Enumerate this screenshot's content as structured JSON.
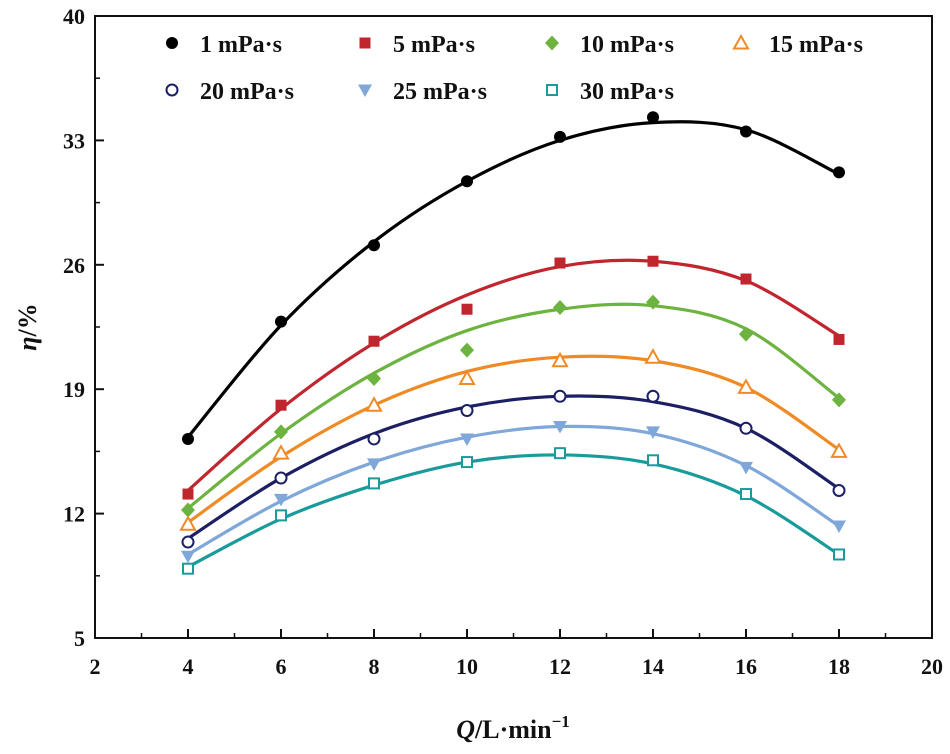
{
  "chart_data": {
    "type": "scatter",
    "title": "",
    "xlabel": {
      "var": "Q",
      "unit": "/L·min",
      "exp": "−1"
    },
    "ylabel": {
      "var": "η",
      "unit": "/%"
    },
    "xlim": [
      2,
      20
    ],
    "ylim": [
      5,
      40
    ],
    "xticks": [
      2,
      4,
      6,
      8,
      10,
      12,
      14,
      16,
      18,
      20
    ],
    "yticks": [
      5,
      12,
      19,
      26,
      33,
      40
    ],
    "x": [
      4,
      6,
      8,
      10,
      12,
      14,
      16,
      18
    ],
    "series": [
      {
        "name": "1 mPa·s",
        "marker": "circle-filled",
        "color": "#000000",
        "values": [
          16.2,
          22.8,
          27.1,
          30.7,
          33.2,
          34.3,
          33.5,
          31.2
        ],
        "fit": [
          16.3,
          22.6,
          27.3,
          30.7,
          33.0,
          34.0,
          33.6,
          31.1
        ]
      },
      {
        "name": "5 mPa·s",
        "marker": "square-filled",
        "color": "#c0262d",
        "values": [
          13.1,
          18.1,
          21.7,
          23.5,
          26.1,
          26.2,
          25.2,
          21.8
        ],
        "fit": [
          13.3,
          17.9,
          21.6,
          24.3,
          25.9,
          26.2,
          25.1,
          22.0
        ]
      },
      {
        "name": "10 mPa·s",
        "marker": "diamond-filled",
        "color": "#6db33f",
        "values": [
          12.2,
          16.6,
          19.6,
          21.2,
          23.6,
          23.9,
          22.1,
          18.4
        ],
        "fit": [
          12.3,
          16.5,
          19.9,
          22.3,
          23.5,
          23.7,
          22.4,
          18.5
        ]
      },
      {
        "name": "15 mPa·s",
        "marker": "triangle-open",
        "color": "#f08a24",
        "values": [
          11.4,
          15.4,
          18.1,
          19.6,
          20.6,
          20.8,
          19.1,
          15.5
        ],
        "fit": [
          11.5,
          15.2,
          18.1,
          20.0,
          20.8,
          20.6,
          19.1,
          15.6
        ]
      },
      {
        "name": "20 mPa·s",
        "marker": "circle-open",
        "color": "#1c1f63",
        "values": [
          10.4,
          14.0,
          16.2,
          17.8,
          18.6,
          18.6,
          16.8,
          13.3
        ],
        "fit": [
          10.6,
          14.0,
          16.5,
          18.0,
          18.6,
          18.3,
          16.8,
          13.4
        ]
      },
      {
        "name": "25 mPa·s",
        "marker": "triangle-down-filled",
        "color": "#7fa7d9",
        "values": [
          9.6,
          12.8,
          14.8,
          16.2,
          16.9,
          16.6,
          14.6,
          11.3
        ],
        "fit": [
          9.7,
          12.7,
          14.9,
          16.3,
          16.9,
          16.5,
          14.7,
          11.3
        ]
      },
      {
        "name": "30 mPa·s",
        "marker": "square-open",
        "color": "#1a9b9b",
        "values": [
          8.9,
          11.9,
          13.7,
          14.9,
          15.4,
          15.0,
          13.1,
          9.7
        ],
        "fit": [
          9.0,
          11.7,
          13.6,
          14.9,
          15.3,
          14.8,
          13.0,
          9.7
        ]
      }
    ],
    "legend": {
      "placement": "top",
      "rows": [
        [
          0,
          1,
          2,
          3
        ],
        [
          4,
          5,
          6
        ]
      ]
    }
  }
}
